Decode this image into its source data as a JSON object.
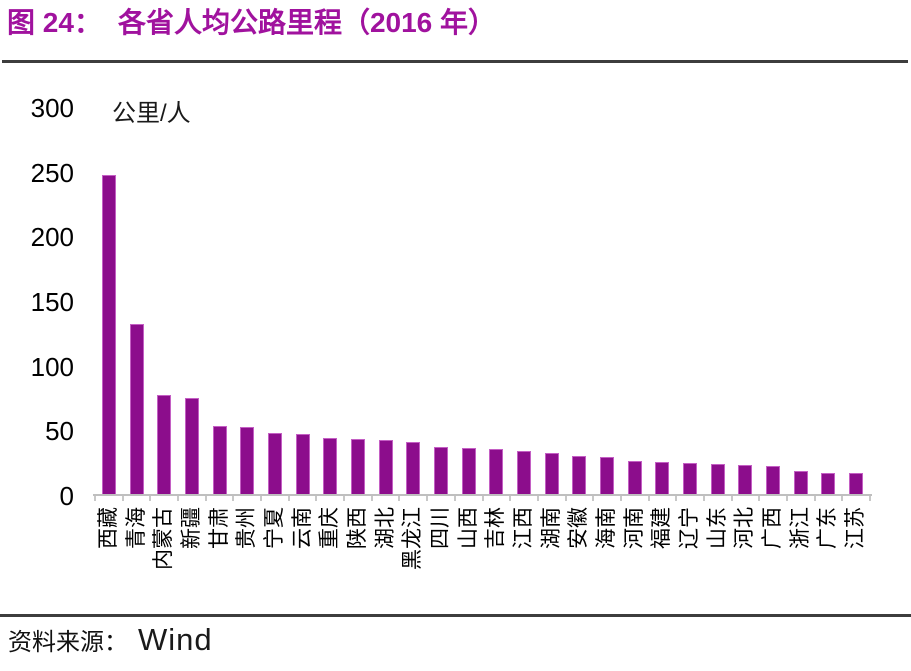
{
  "header": {
    "title_prefix": "图 24：",
    "title_text": "各省人均公路里程（2016 年）"
  },
  "footer": {
    "source_label": "资料来源：",
    "source_value": "Wind"
  },
  "chart_data": {
    "type": "bar",
    "title": "各省人均公路里程（2016 年）",
    "xlabel": "",
    "ylabel": "公里/人",
    "unit_label": "公里/人",
    "categories": [
      "西藏",
      "青海",
      "内蒙古",
      "新疆",
      "甘肃",
      "贵州",
      "宁夏",
      "云南",
      "重庆",
      "陕西",
      "湖北",
      "黑龙江",
      "四川",
      "山西",
      "吉林",
      "江西",
      "湖南",
      "安徽",
      "海南",
      "河南",
      "福建",
      "辽宁",
      "山东",
      "河北",
      "广西",
      "浙江",
      "广东",
      "江苏"
    ],
    "values": [
      248,
      133,
      78,
      76,
      54,
      53,
      49,
      48,
      45,
      44,
      43,
      42,
      38,
      37,
      36,
      35,
      33,
      31,
      30,
      27,
      26,
      25.5,
      24.5,
      24,
      23,
      19,
      18,
      17.5
    ],
    "ylim": [
      0,
      300
    ],
    "yticks": [
      0,
      50,
      100,
      150,
      200,
      250,
      300
    ],
    "grid": false,
    "legend_position": "none",
    "bar_color": "#8C0D8C",
    "bar_edge_color": "#C45FC4",
    "title_color": "#A0129E",
    "axis_color": "#BFBFBF",
    "rule_color": "#3d3d3d"
  }
}
